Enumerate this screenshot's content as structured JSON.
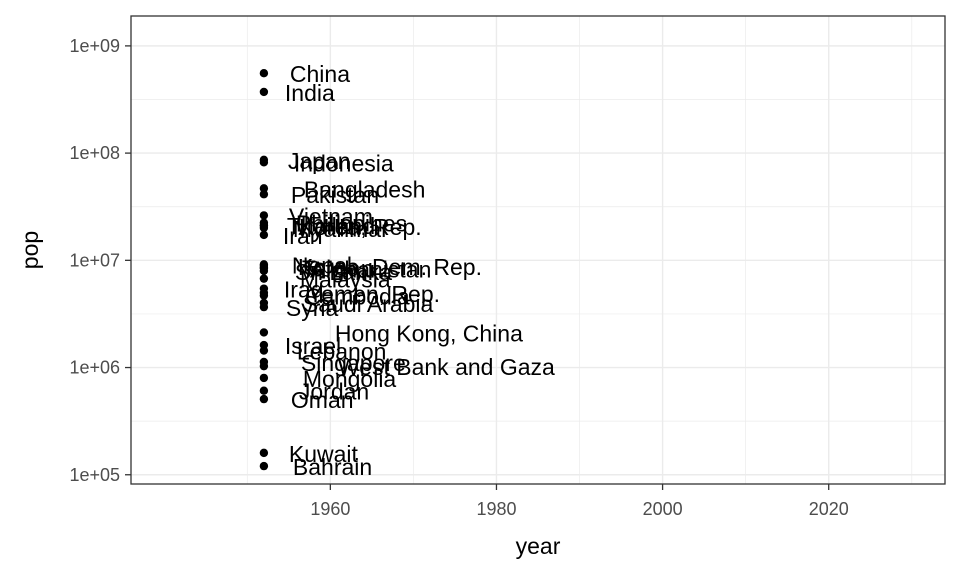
{
  "chart_data": {
    "type": "scatter",
    "title": "",
    "xlabel": "year",
    "ylabel": "pop",
    "x_scale": "linear",
    "y_scale": "log10",
    "xlim": [
      1936,
      2034
    ],
    "ylim": [
      82000,
      1900000000
    ],
    "x_ticks": [
      1960,
      1980,
      2000,
      2020
    ],
    "x_tick_labels": [
      "1960",
      "1980",
      "2000",
      "2020"
    ],
    "y_ticks": [
      100000,
      1000000,
      10000000,
      100000000,
      1000000000
    ],
    "y_tick_labels": [
      "1e+05",
      "1e+06",
      "1e+07",
      "1e+08",
      "1e+09"
    ],
    "grid": true,
    "legend": "none",
    "colors": {
      "point": "#000000",
      "grid": "#ebebeb",
      "panel_border": "#333333"
    },
    "points": [
      {
        "label": "China",
        "x": 1952,
        "y": 556263527
      },
      {
        "label": "India",
        "x": 1952,
        "y": 372000000
      },
      {
        "label": "Japan",
        "x": 1952,
        "y": 86459025
      },
      {
        "label": "Indonesia",
        "x": 1952,
        "y": 82052000
      },
      {
        "label": "Bangladesh",
        "x": 1952,
        "y": 46886859
      },
      {
        "label": "Pakistan",
        "x": 1952,
        "y": 41346560
      },
      {
        "label": "Vietnam",
        "x": 1952,
        "y": 26246839
      },
      {
        "label": "Philippines",
        "x": 1952,
        "y": 22438691
      },
      {
        "label": "Thailand",
        "x": 1952,
        "y": 21289402
      },
      {
        "label": "Korea, Rep.",
        "x": 1952,
        "y": 20947571
      },
      {
        "label": "Myanmar",
        "x": 1952,
        "y": 20092996
      },
      {
        "label": "Iran",
        "x": 1952,
        "y": 17272000
      },
      {
        "label": "Korea, Dem. Rep.",
        "x": 1952,
        "y": 8865488
      },
      {
        "label": "Taiwan",
        "x": 1952,
        "y": 8550362
      },
      {
        "label": "Afghanistan",
        "x": 1952,
        "y": 8425333
      },
      {
        "label": "Nepal",
        "x": 1952,
        "y": 9182536
      },
      {
        "label": "Sri Lanka",
        "x": 1952,
        "y": 7982342
      },
      {
        "label": "Malaysia",
        "x": 1952,
        "y": 6748378
      },
      {
        "label": "Iraq",
        "x": 1952,
        "y": 5441766
      },
      {
        "label": "Cambodia",
        "x": 1952,
        "y": 4693836
      },
      {
        "label": "Yemen, Rep.",
        "x": 1952,
        "y": 4963829
      },
      {
        "label": "Saudi Arabia",
        "x": 1952,
        "y": 4005677
      },
      {
        "label": "Syria",
        "x": 1952,
        "y": 3661549
      },
      {
        "label": "Hong Kong, China",
        "x": 1952,
        "y": 2125900
      },
      {
        "label": "Israel",
        "x": 1952,
        "y": 1620914
      },
      {
        "label": "Lebanon",
        "x": 1952,
        "y": 1439529
      },
      {
        "label": "Singapore",
        "x": 1952,
        "y": 1127000
      },
      {
        "label": "West Bank and Gaza",
        "x": 1952,
        "y": 1030585
      },
      {
        "label": "Mongolia",
        "x": 1952,
        "y": 800663
      },
      {
        "label": "Jordan",
        "x": 1952,
        "y": 607914
      },
      {
        "label": "Oman",
        "x": 1952,
        "y": 507833
      },
      {
        "label": "Kuwait",
        "x": 1952,
        "y": 160000
      },
      {
        "label": "Bahrain",
        "x": 1952,
        "y": 120447
      }
    ]
  }
}
